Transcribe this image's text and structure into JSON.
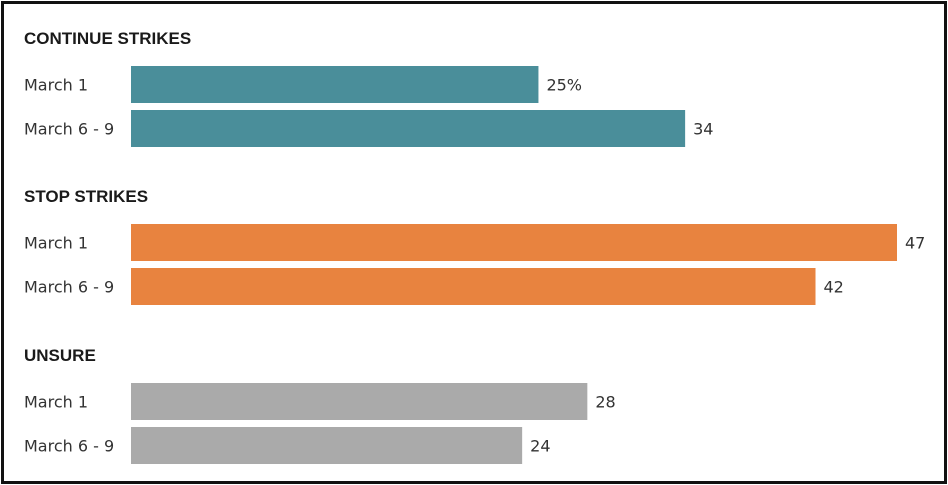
{
  "chart_data": {
    "type": "bar",
    "orientation": "horizontal",
    "groups": [
      {
        "title": "CONTINUE STRIKES",
        "color": "#4a8e9a",
        "bars": [
          {
            "category": "March 1",
            "value": 25,
            "label": "25%"
          },
          {
            "category": "March 6 - 9",
            "value": 34,
            "label": "34"
          }
        ]
      },
      {
        "title": "STOP STRIKES",
        "color": "#e8833f",
        "bars": [
          {
            "category": "March 1",
            "value": 47,
            "label": "47"
          },
          {
            "category": "March 6 - 9",
            "value": 42,
            "label": "42"
          }
        ]
      },
      {
        "title": "UNSURE",
        "color": "#aaaaaa",
        "bars": [
          {
            "category": "March 1",
            "value": 28,
            "label": "28"
          },
          {
            "category": "March 6 - 9",
            "value": 24,
            "label": "24"
          }
        ]
      }
    ],
    "xlim": [
      0,
      47
    ],
    "grid": false,
    "legend": "none"
  }
}
